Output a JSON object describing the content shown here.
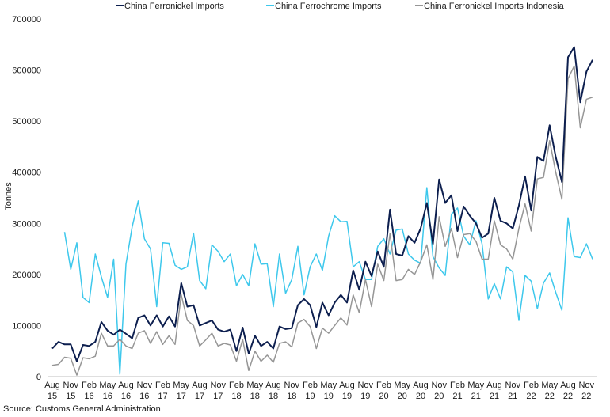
{
  "source": "Source: Customs General Administration",
  "chart_data": {
    "type": "line",
    "ylabel": "Tonnes",
    "xlabel": "",
    "ylim": [
      0,
      700000
    ],
    "yticks": [
      0,
      100000,
      200000,
      300000,
      400000,
      500000,
      600000,
      700000
    ],
    "ytick_labels": [
      "0",
      "100000",
      "200000",
      "300000",
      "400000",
      "500000",
      "600000",
      "700000"
    ],
    "xtick_labels": [
      [
        "Aug",
        "15"
      ],
      [
        "Nov",
        "15"
      ],
      [
        "Feb",
        "16"
      ],
      [
        "May",
        "16"
      ],
      [
        "Aug",
        "16"
      ],
      [
        "Nov",
        "16"
      ],
      [
        "Feb",
        "17"
      ],
      [
        "May",
        "17"
      ],
      [
        "Aug",
        "17"
      ],
      [
        "Nov",
        "17"
      ],
      [
        "Feb",
        "18"
      ],
      [
        "May",
        "18"
      ],
      [
        "Aug",
        "18"
      ],
      [
        "Nov",
        "18"
      ],
      [
        "Feb",
        "19"
      ],
      [
        "May",
        "19"
      ],
      [
        "Aug",
        "19"
      ],
      [
        "Nov",
        "19"
      ],
      [
        "Feb",
        "20"
      ],
      [
        "May",
        "20"
      ],
      [
        "Aug",
        "20"
      ],
      [
        "Nov",
        "20"
      ],
      [
        "Feb",
        "21"
      ],
      [
        "May",
        "21"
      ],
      [
        "Aug",
        "21"
      ],
      [
        "Nov",
        "21"
      ],
      [
        "Feb",
        "22"
      ],
      [
        "May",
        "22"
      ],
      [
        "Aug",
        "22"
      ],
      [
        "Nov",
        "22"
      ]
    ],
    "x_start": "Aug 2015",
    "grid": false,
    "legend_position": "top",
    "series": [
      {
        "name": "China Ferronickel Imports",
        "color": "#0d1f4f",
        "values": [
          55000,
          68000,
          63000,
          63000,
          30000,
          62000,
          60000,
          68000,
          107000,
          90000,
          82000,
          92000,
          84000,
          75000,
          115000,
          120000,
          100000,
          120000,
          98000,
          118000,
          98000,
          183000,
          137000,
          140000,
          100000,
          105000,
          110000,
          92000,
          88000,
          92000,
          50000,
          96000,
          45000,
          80000,
          60000,
          68000,
          55000,
          98000,
          93000,
          95000,
          140000,
          152000,
          140000,
          97000,
          145000,
          120000,
          145000,
          160000,
          145000,
          208000,
          170000,
          225000,
          197000,
          245000,
          215000,
          327000,
          240000,
          237000,
          275000,
          262000,
          290000,
          340000,
          260000,
          386000,
          340000,
          355000,
          285000,
          333000,
          315000,
          300000,
          272000,
          280000,
          350000,
          305000,
          300000,
          290000,
          335000,
          392000,
          325000,
          430000,
          422000,
          492000,
          430000,
          381000,
          625000,
          645000,
          537000,
          597000,
          620000
        ]
      },
      {
        "name": "China Ferrochrome Imports",
        "color": "#3ec8ec",
        "values": [
          null,
          null,
          283000,
          210000,
          262000,
          155000,
          145000,
          240000,
          195000,
          155000,
          230000,
          5000,
          220000,
          293000,
          344000,
          270000,
          250000,
          137000,
          262000,
          261000,
          218000,
          210000,
          215000,
          281000,
          188000,
          172000,
          258000,
          245000,
          225000,
          240000,
          178000,
          200000,
          178000,
          260000,
          220000,
          221000,
          137000,
          240000,
          163000,
          190000,
          255000,
          160000,
          215000,
          240000,
          208000,
          275000,
          315000,
          303000,
          304000,
          215000,
          225000,
          190000,
          190000,
          255000,
          270000,
          240000,
          287000,
          289000,
          240000,
          228000,
          222000,
          370000,
          235000,
          213000,
          198000,
          318000,
          330000,
          275000,
          258000,
          305000,
          260000,
          152000,
          182000,
          152000,
          215000,
          205000,
          110000,
          198000,
          187000,
          133000,
          183000,
          203000,
          165000,
          130000,
          311000,
          235000,
          233000,
          260000,
          230000
        ]
      },
      {
        "name": "China Ferronickel Imports Indonesia",
        "color": "#969696",
        "values": [
          22000,
          24000,
          38000,
          36000,
          3000,
          37000,
          35000,
          40000,
          85000,
          60000,
          60000,
          73000,
          60000,
          55000,
          85000,
          90000,
          65000,
          88000,
          63000,
          80000,
          63000,
          160000,
          110000,
          100000,
          60000,
          72000,
          85000,
          60000,
          65000,
          62000,
          30000,
          73000,
          12000,
          50000,
          30000,
          42000,
          28000,
          65000,
          68000,
          58000,
          105000,
          112000,
          98000,
          55000,
          95000,
          85000,
          100000,
          115000,
          101000,
          160000,
          125000,
          190000,
          137000,
          220000,
          188000,
          280000,
          188000,
          190000,
          210000,
          200000,
          225000,
          258000,
          190000,
          313000,
          255000,
          290000,
          233000,
          278000,
          280000,
          265000,
          230000,
          230000,
          305000,
          258000,
          250000,
          230000,
          290000,
          338000,
          285000,
          387000,
          390000,
          462000,
          400000,
          347000,
          583000,
          608000,
          487000,
          543000,
          547000
        ]
      }
    ]
  }
}
